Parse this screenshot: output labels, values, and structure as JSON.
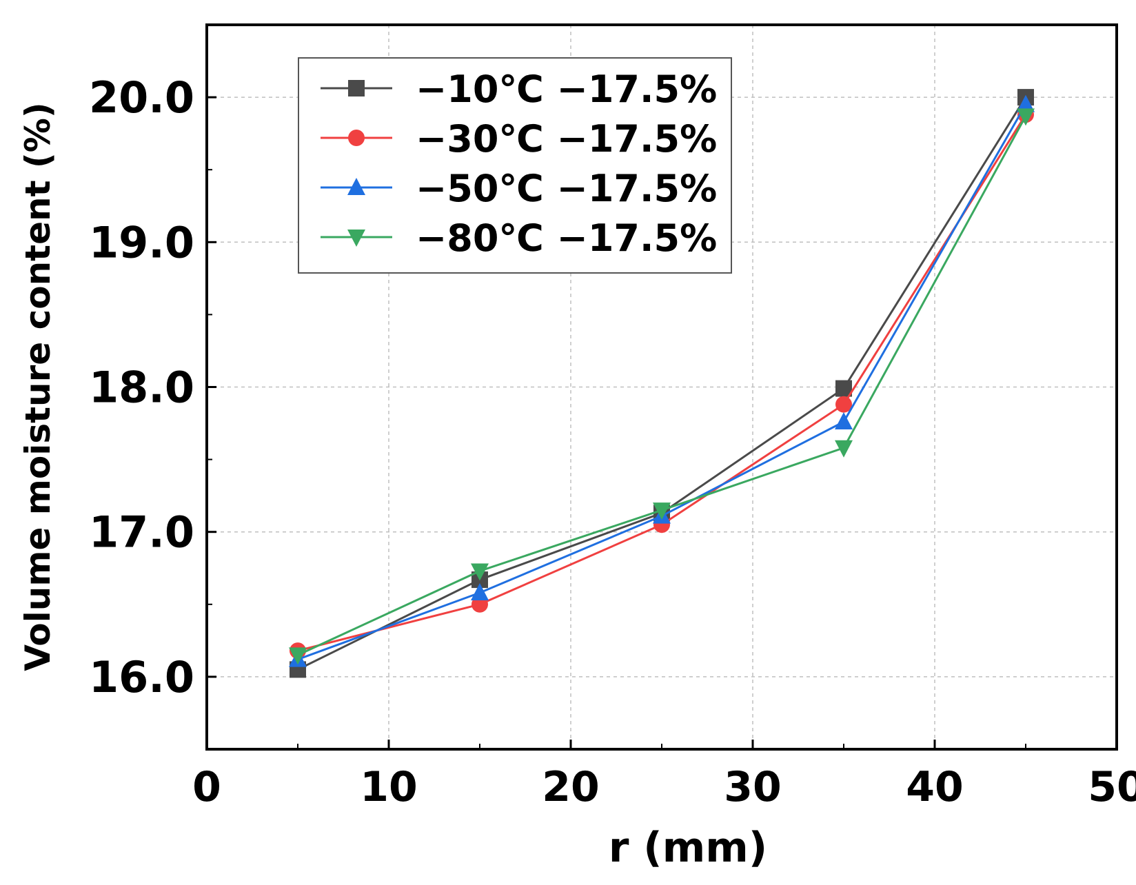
{
  "chart_data": {
    "type": "line",
    "xlabel": "r (mm)",
    "ylabel": "Volume moisture content (%)",
    "xlim": [
      0,
      50
    ],
    "ylim": [
      15.5,
      20.5
    ],
    "x_ticks": [
      {
        "value": 0,
        "label": "0"
      },
      {
        "value": 10,
        "label": "10"
      },
      {
        "value": 20,
        "label": "20"
      },
      {
        "value": 30,
        "label": "30"
      },
      {
        "value": 40,
        "label": "40"
      },
      {
        "value": 50,
        "label": "50"
      }
    ],
    "y_ticks": [
      {
        "value": 16,
        "label": "16.0"
      },
      {
        "value": 17,
        "label": "17.0"
      },
      {
        "value": 18,
        "label": "18.0"
      },
      {
        "value": 19,
        "label": "19.0"
      },
      {
        "value": 20,
        "label": "20.0"
      }
    ],
    "y_minor_ticks": [
      15.5,
      16.5,
      17.5,
      18.5,
      19.5,
      20.5
    ],
    "grid": true,
    "legend_position": "top-left",
    "x": [
      5,
      15,
      25,
      35,
      45
    ],
    "series": [
      {
        "name": "−10℃ −17.5%",
        "color": "#4a4a4a",
        "marker": "square",
        "values": [
          16.05,
          16.67,
          17.13,
          17.99,
          20.0
        ]
      },
      {
        "name": "−30℃ −17.5%",
        "color": "#f04040",
        "marker": "circle",
        "values": [
          16.18,
          16.5,
          17.05,
          17.88,
          19.88
        ]
      },
      {
        "name": "−50℃ −17.5%",
        "color": "#1f6fe0",
        "marker": "triangle-up",
        "values": [
          16.12,
          16.58,
          17.11,
          17.76,
          19.95
        ]
      },
      {
        "name": "−80℃ −17.5%",
        "color": "#3aa860",
        "marker": "triangle-down",
        "values": [
          16.15,
          16.73,
          17.15,
          17.58,
          19.87
        ]
      }
    ]
  }
}
